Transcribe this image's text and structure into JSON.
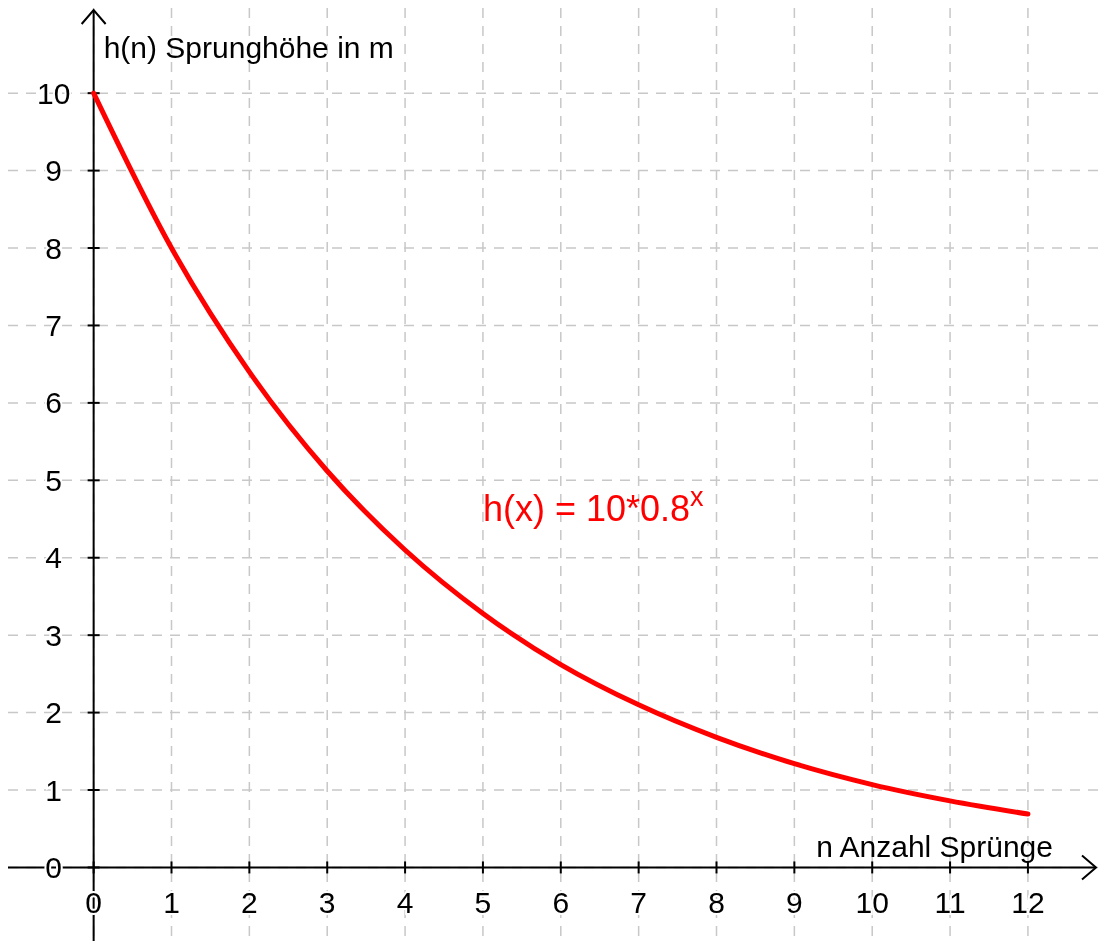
{
  "chart_data": {
    "type": "line",
    "xlabel": "n Anzahl Sprünge",
    "ylabel": "h(n) Sprunghöhe in m",
    "x": [
      0,
      1,
      2,
      3,
      4,
      5,
      6,
      7,
      8,
      9,
      10,
      11,
      12
    ],
    "series": [
      {
        "name": "h(x) = 10*0.8$^{x}$",
        "color": "#ff0000",
        "values": [
          10,
          8,
          6.4,
          5.12,
          4.1,
          3.28,
          2.62,
          2.1,
          1.68,
          1.34,
          1.07,
          0.86,
          0.69
        ]
      }
    ],
    "xlim": [
      -1.1,
      12.9
    ],
    "ylim": [
      -0.95,
      11.1
    ],
    "xticks": [
      0,
      1,
      2,
      3,
      4,
      5,
      6,
      7,
      8,
      9,
      10,
      11,
      12
    ],
    "yticks": [
      0,
      1,
      2,
      3,
      4,
      5,
      6,
      7,
      8,
      9,
      10
    ],
    "grid": true,
    "marker": "none",
    "line_style": "solid"
  }
}
